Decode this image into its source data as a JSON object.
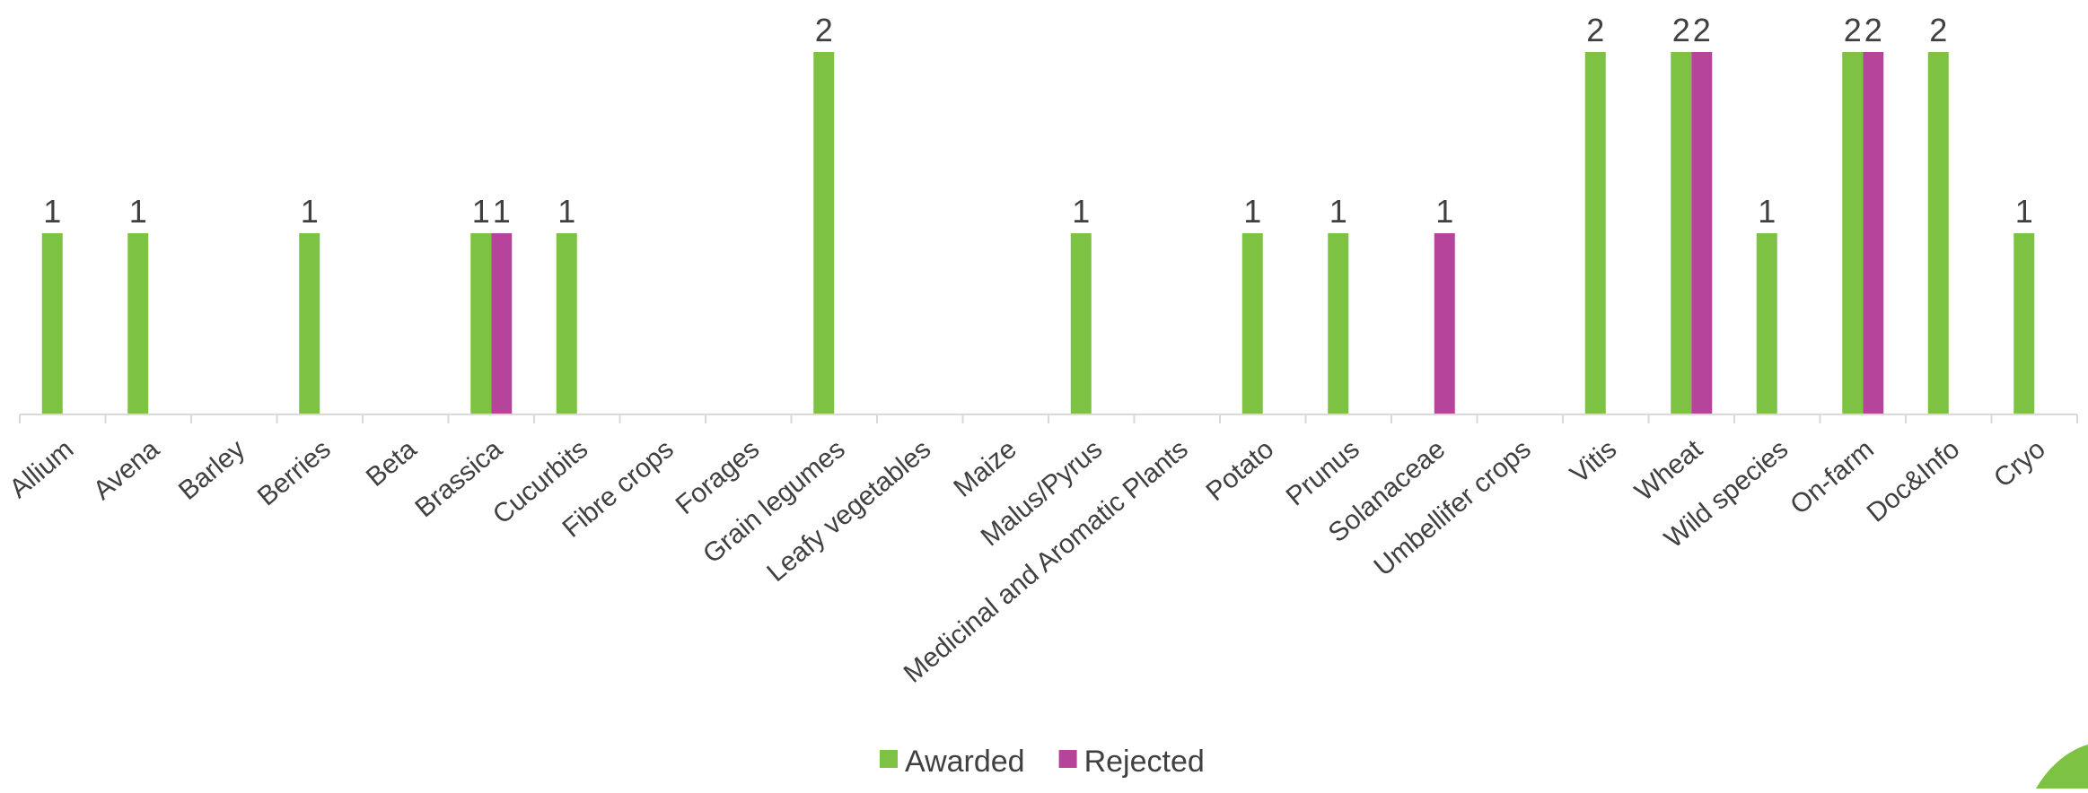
{
  "chart_data": {
    "type": "bar",
    "title": "",
    "xlabel": "",
    "ylabel": "",
    "ylim": [
      0,
      2
    ],
    "grid": false,
    "legend_position": "bottom",
    "categories": [
      "Allium",
      "Avena",
      "Barley",
      "Berries",
      "Beta",
      "Brassica",
      "Cucurbits",
      "Fibre crops",
      "Forages",
      "Grain legumes",
      "Leafy vegetables",
      "Maize",
      "Malus/Pyrus",
      "Medicinal and Aromatic Plants",
      "Potato",
      "Prunus",
      "Solanaceae",
      "Umbellifer crops",
      "Vitis",
      "Wheat",
      "Wild species",
      "On-farm",
      "Doc&Info",
      "Cryo"
    ],
    "series": [
      {
        "name": "Awarded",
        "color": "#7DC242",
        "values": [
          1,
          1,
          0,
          1,
          0,
          1,
          1,
          0,
          0,
          2,
          0,
          0,
          1,
          0,
          1,
          1,
          0,
          0,
          2,
          2,
          1,
          2,
          2,
          1
        ]
      },
      {
        "name": "Rejected",
        "color": "#B5449A",
        "values": [
          0,
          0,
          0,
          0,
          0,
          1,
          0,
          0,
          0,
          0,
          0,
          0,
          0,
          0,
          0,
          0,
          1,
          0,
          0,
          2,
          0,
          2,
          0,
          0
        ]
      }
    ]
  },
  "colors": {
    "axis": "#D9D9D9",
    "text": "#404040",
    "logo": "#7DC242"
  }
}
